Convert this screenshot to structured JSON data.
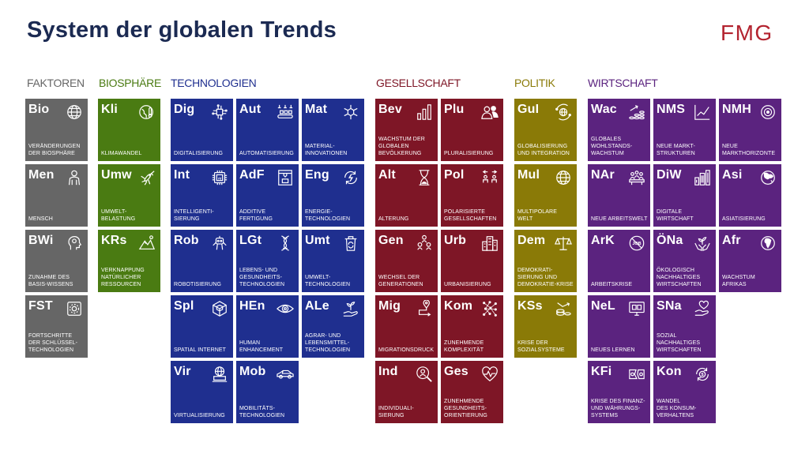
{
  "title": "System der globalen Trends",
  "logo": "FMG",
  "categories": [
    {
      "name": "FAKTOREN",
      "color": "#666666"
    },
    {
      "name": "BIOSPHÄRE",
      "color": "#4a7b12"
    },
    {
      "name": "TECHNOLOGIEN",
      "color": "#1f2f8f"
    },
    {
      "name": "GESELLSCHAFT",
      "color": "#7e1626"
    },
    {
      "name": "POLITIK",
      "color": "#8a7a07"
    },
    {
      "name": "WIRTSCHAFT",
      "color": "#5b237f"
    }
  ],
  "tiles": {
    "bio": {
      "code": "Bio",
      "label": "Veränderungen\nder Biosphäre",
      "icon": "globe-network-icon"
    },
    "men": {
      "code": "Men",
      "label": "Mensch",
      "icon": "person-icon"
    },
    "bwi": {
      "code": "BWi",
      "label": "Zunahme des\nBasis-Wissens",
      "icon": "head-icon"
    },
    "fst": {
      "code": "FST",
      "label": "Fortschritte\nder Schlüssel-\ntechnologien",
      "icon": "gear-screen-icon"
    },
    "kli": {
      "code": "Kli",
      "label": "Klimawandel",
      "icon": "globe-thermometer-icon"
    },
    "umw": {
      "code": "Umw",
      "label": "Umwelt-\nbelastung",
      "icon": "mosquito-icon"
    },
    "krs": {
      "code": "KRs",
      "label": "Verknappung\nnatürlicher\nRessourcen",
      "icon": "mountain-icon"
    },
    "dig": {
      "code": "Dig",
      "label": "Digitalisierung",
      "icon": "circuit-icon"
    },
    "aut": {
      "code": "Aut",
      "label": "Automatisierung",
      "icon": "conveyor-icon"
    },
    "mat": {
      "code": "Mat",
      "label": "Material-\ninnovationen",
      "icon": "molecule-icon"
    },
    "int": {
      "code": "Int",
      "label": "Intelligenti-\nsierung",
      "icon": "ai-chip-icon"
    },
    "adf": {
      "code": "AdF",
      "label": "Additive\nFertigung",
      "icon": "3d-printer-icon"
    },
    "eng": {
      "code": "Eng",
      "label": "Energie-\ntechnologien",
      "icon": "energy-cycle-icon"
    },
    "rob": {
      "code": "Rob",
      "label": "Robotisierung",
      "icon": "robot-icon"
    },
    "lgt": {
      "code": "LGt",
      "label": "Lebens- und\nGesundheits-\ntechnologien",
      "icon": "dna-icon"
    },
    "umt": {
      "code": "Umt",
      "label": "Umwelt-\ntechnologien",
      "icon": "recycle-bin-icon"
    },
    "spl": {
      "code": "Spl",
      "label": "Spatial Internet",
      "icon": "cube-icon"
    },
    "hen": {
      "code": "HEn",
      "label": "Human\nEnhancement",
      "icon": "eye-icon"
    },
    "ale": {
      "code": "ALe",
      "label": "Agrar- und\nLebensmittel-\ntechnologien",
      "icon": "plant-hand-icon"
    },
    "vir": {
      "code": "Vir",
      "label": "Virtualisierung",
      "icon": "globe-laptop-icon"
    },
    "mob": {
      "code": "Mob",
      "label": "Mobilitäts-\ntechnologien",
      "icon": "car-icon"
    },
    "bev": {
      "code": "Bev",
      "label": "Wachstum der\nglobalen\nBevölkerung",
      "icon": "bar-chart-icon"
    },
    "plu": {
      "code": "Plu",
      "label": "Pluralisierung",
      "icon": "people-icon"
    },
    "alt": {
      "code": "Alt",
      "label": "Alterung",
      "icon": "hourglass-icon"
    },
    "pol": {
      "code": "Pol",
      "label": "Polarisierte\nGesellschaften",
      "icon": "polarized-people-icon"
    },
    "gen": {
      "code": "Gen",
      "label": "Wechsel der\nGenerationen",
      "icon": "generations-icon"
    },
    "urb": {
      "code": "Urb",
      "label": "Urbanisierung",
      "icon": "city-icon"
    },
    "mig": {
      "code": "Mig",
      "label": "Migrationsdruck",
      "icon": "migration-pin-icon"
    },
    "kom": {
      "code": "Kom",
      "label": "Zunehmende\nKomplexität",
      "icon": "network-dots-icon"
    },
    "ind": {
      "code": "Ind",
      "label": "Individuali-\nsierung",
      "icon": "person-search-icon"
    },
    "ges": {
      "code": "Ges",
      "label": "Zunehmende\nGesundheits-\norientierung",
      "icon": "heart-pulse-icon"
    },
    "gul": {
      "code": "GuI",
      "label": "Globalisierung\nund Integration",
      "icon": "globe-cycle-icon"
    },
    "mul": {
      "code": "Mul",
      "label": "Multipolare\nWelt",
      "icon": "globe-icon"
    },
    "dem": {
      "code": "Dem",
      "label": "Demokrati-\nsierung und\nDemokratie-Krise",
      "icon": "scales-icon"
    },
    "kss": {
      "code": "KSs",
      "label": "Krise der\nSozialsysteme",
      "icon": "coins-arrow-icon"
    },
    "wac": {
      "code": "Wac",
      "label": "Globales\nWohlstands-\nwachstum",
      "icon": "coins-growth-icon"
    },
    "nms": {
      "code": "NMS",
      "label": "Neue Markt-\nstrukturen",
      "icon": "line-chart-icon"
    },
    "nmh": {
      "code": "NMH",
      "label": "Neue\nMarkthorizonte",
      "icon": "target-icon"
    },
    "nar": {
      "code": "NAr",
      "label": "Neue Arbeitswelt",
      "icon": "meeting-icon"
    },
    "diw": {
      "code": "DiW",
      "label": "Digitale\nWirtschaft",
      "icon": "digital-buildings-icon"
    },
    "asi": {
      "code": "Asi",
      "label": "Asiatisierung",
      "icon": "globe-asia-icon"
    },
    "ark": {
      "code": "ArK",
      "label": "Arbeitskrise",
      "icon": "no-job-icon"
    },
    "ona": {
      "code": "ÖNa",
      "label": "Ökologisch\nnachhaltiges\nWirtschaften",
      "icon": "plant-hands-icon"
    },
    "afr": {
      "code": "Afr",
      "label": "Wachstum\nAfrikas",
      "icon": "globe-africa-icon"
    },
    "nel": {
      "code": "NeL",
      "label": "Neues Lernen",
      "icon": "monitor-learning-icon"
    },
    "sna": {
      "code": "SNa",
      "label": "Sozial\nnachhaltiges\nWirtschaften",
      "icon": "heart-hand-icon"
    },
    "kfi": {
      "code": "KFi",
      "label": "Krise des Finanz-\nund Währungs-\nsystems",
      "icon": "broken-money-icon"
    },
    "kon": {
      "code": "Kon",
      "label": "Wandel\ndes Konsum-\nverhaltens",
      "icon": "dollar-cycle-icon"
    }
  }
}
